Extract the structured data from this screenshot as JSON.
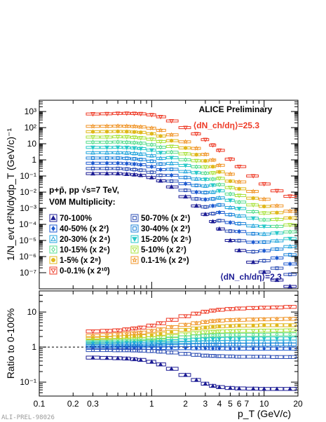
{
  "chart_data": [
    {
      "type": "scatter",
      "title": "ALICE Preliminary",
      "xlabel": "p_T (GeV/c)",
      "ylabel": "1/N_evt d²N/dydp_T (GeV/c)⁻¹",
      "xscale": "log",
      "yscale": "log",
      "xlim": [
        0.1,
        20
      ],
      "ylim": [
        1e-08,
        5000
      ],
      "x_ticks": [
        "0.1",
        "0.2",
        "0.3",
        "1",
        "2",
        "3",
        "4",
        "5",
        "6",
        "7",
        "10",
        "20"
      ],
      "y_ticks": [
        "10³",
        "10²",
        "10",
        "1",
        "10⁻¹",
        "10⁻²",
        "10⁻³",
        "10⁻⁴",
        "10⁻⁵",
        "10⁻⁶",
        "10⁻⁷"
      ],
      "annotation_top": "⟨dN_ch/dη⟩=25.3",
      "annotation_bottom": "⟨dN_ch/dη⟩=2.3",
      "legend_header": [
        "p+p̄, pp √s=7 TeV,",
        "V0M Multiplicity:"
      ],
      "legend_position": "center-left",
      "x": [
        0.3,
        0.4,
        0.5,
        0.6,
        0.7,
        0.8,
        1.0,
        1.2,
        1.5,
        2.0,
        2.5,
        3.0,
        3.5,
        4.0,
        5.0,
        6.0,
        8.0,
        10.0,
        13.0,
        17.0
      ],
      "series": [
        {
          "name": "70-100%",
          "scale_factor": 1,
          "color": "#1c1c94",
          "marker": "triangle-up",
          "values": [
            0.14,
            0.14,
            0.14,
            0.13,
            0.12,
            0.11,
            0.08,
            0.05,
            0.021,
            0.0052,
            0.0014,
            0.00042,
            0.00015,
            5.2e-05,
            1e-05,
            2.4e-06,
            4.5e-07,
            1.1e-07,
            3.5e-08,
            1.4e-08
          ]
        },
        {
          "name": "50-70% (x 2¹)",
          "scale_factor": 2,
          "color": "#2e4fb4",
          "marker": "square-open-cross",
          "values": [
            0.29,
            0.29,
            0.29,
            0.27,
            0.25,
            0.23,
            0.17,
            0.11,
            0.048,
            0.013,
            0.0038,
            0.0012,
            0.00046,
            0.00017,
            3.8e-05,
            9.7e-06,
            2e-06,
            5.5e-07,
            1.9e-07,
            7.8e-08
          ]
        },
        {
          "name": "40-50% (x 2²)",
          "scale_factor": 4,
          "color": "#1f5bd0",
          "marker": "diamond",
          "values": [
            0.62,
            0.62,
            0.62,
            0.59,
            0.55,
            0.5,
            0.38,
            0.25,
            0.11,
            0.033,
            0.01,
            0.0035,
            0.0014,
            0.00055,
            0.00013,
            3.6e-05,
            7.8e-06,
            2.3e-06,
            8.2e-07,
            3.5e-07
          ]
        },
        {
          "name": "30-40% (x 2³)",
          "scale_factor": 8,
          "color": "#1a80d8",
          "marker": "x-open-square",
          "values": [
            1.3,
            1.3,
            1.3,
            1.25,
            1.15,
            1.05,
            0.82,
            0.55,
            0.26,
            0.08,
            0.026,
            0.0094,
            0.0038,
            0.0016,
            0.0004,
            0.00011,
            2.6e-05,
            7.9e-06,
            2.9e-06,
            1.3e-06
          ]
        },
        {
          "name": "20-30% (x 2⁴)",
          "scale_factor": 16,
          "color": "#23a6dc",
          "marker": "triangle-up-open",
          "values": [
            2.8,
            2.8,
            2.8,
            2.7,
            2.5,
            2.3,
            1.8,
            1.25,
            0.6,
            0.19,
            0.065,
            0.024,
            0.01,
            0.0044,
            0.0011,
            0.00033,
            8e-05,
            2.5e-05,
            9.5e-06,
            4.2e-06
          ]
        },
        {
          "name": "15-20% (x 2⁵)",
          "scale_factor": 32,
          "color": "#2ac9c9",
          "marker": "triangle-down",
          "values": [
            5.9,
            5.9,
            6.0,
            5.8,
            5.4,
            5.0,
            4.0,
            2.8,
            1.35,
            0.45,
            0.16,
            0.062,
            0.027,
            0.012,
            0.0031,
            0.00095,
            0.00024,
            7.5e-05,
            2.9e-05,
            1.3e-05
          ]
        },
        {
          "name": "10-15% (x 2⁶)",
          "scale_factor": 64,
          "color": "#55dc8c",
          "marker": "diamond-cross",
          "values": [
            12.5,
            12.5,
            12.8,
            12.4,
            11.6,
            10.8,
            8.7,
            6.1,
            3.0,
            1.02,
            0.37,
            0.15,
            0.064,
            0.029,
            0.0076,
            0.0024,
            0.00061,
            0.00019,
            7.5e-05,
            3.4e-05
          ]
        },
        {
          "name": "5-10% (x 2⁷)",
          "scale_factor": 128,
          "color": "#a9e23c",
          "marker": "triangle-down-open",
          "values": [
            26,
            26,
            27,
            26.5,
            25,
            23,
            19,
            13.5,
            6.8,
            2.35,
            0.88,
            0.36,
            0.155,
            0.071,
            0.019,
            0.0061,
            0.0016,
            0.0005,
            0.0002,
            9.2e-05
          ]
        },
        {
          "name": "1-5% (x 2⁸)",
          "scale_factor": 256,
          "color": "#e0b81c",
          "marker": "circle",
          "values": [
            56,
            57,
            58,
            57,
            54,
            51,
            42,
            30,
            15.5,
            5.5,
            2.1,
            0.87,
            0.38,
            0.18,
            0.048,
            0.016,
            0.0042,
            0.0013,
            0.00053,
            0.00025
          ]
        },
        {
          "name": "0.1-1% (x 2⁹)",
          "scale_factor": 512,
          "color": "#f0962a",
          "marker": "star-open",
          "values": [
            120,
            122,
            125,
            123,
            118,
            111,
            93,
            68,
            36,
            13.2,
            5.2,
            2.2,
            0.98,
            0.46,
            0.13,
            0.043,
            0.011,
            0.0036,
            0.0014,
            0.00066
          ]
        },
        {
          "name": "0-0.1% (x 2¹⁰)",
          "scale_factor": 1024,
          "color": "#ee3a26",
          "marker": "triangle-down-open",
          "values": [
            700,
            720,
            760,
            770,
            750,
            720,
            620,
            470,
            260,
            100,
            41,
            18,
            8.2,
            3.9,
            1.1,
            0.38,
            0.1,
            0.032,
            0.012,
            0.0055
          ]
        }
      ]
    },
    {
      "type": "scatter",
      "xlabel": "p_T (GeV/c)",
      "ylabel": "Ratio to 0-100%",
      "xscale": "log",
      "yscale": "log",
      "xlim": [
        0.1,
        20
      ],
      "ylim": [
        0.04,
        40
      ],
      "y_ticks": [
        "10",
        "1",
        "10⁻¹"
      ],
      "reference_line": 1,
      "x": [
        0.3,
        0.4,
        0.5,
        0.6,
        0.7,
        0.8,
        1.0,
        1.2,
        1.5,
        2.0,
        2.5,
        3.0,
        3.5,
        4.0,
        5.0,
        6.0,
        8.0,
        10.0,
        13.0,
        17.0
      ],
      "series": [
        {
          "name": "0-0.1% (x 2¹⁰)",
          "values": [
            2.8,
            2.9,
            3.0,
            3.2,
            3.4,
            3.6,
            4.1,
            4.8,
            6.0,
            7.6,
            9.0,
            10.2,
            11.0,
            11.6,
            12.2,
            12.6,
            13.0,
            13.3,
            13.5,
            14.0
          ]
        },
        {
          "name": "0.1-1% (x 2⁹)",
          "values": [
            2.1,
            2.2,
            2.3,
            2.4,
            2.5,
            2.6,
            2.9,
            3.2,
            3.7,
            4.3,
            4.8,
            5.2,
            5.5,
            5.7,
            5.9,
            6.0,
            6.1,
            6.2,
            6.3,
            6.4
          ]
        },
        {
          "name": "1-5% (x 2⁸)",
          "values": [
            1.8,
            1.85,
            1.9,
            1.95,
            2.0,
            2.05,
            2.2,
            2.4,
            2.7,
            3.1,
            3.4,
            3.6,
            3.8,
            3.9,
            4.0,
            4.1,
            4.1,
            4.2,
            4.2,
            4.2
          ]
        },
        {
          "name": "5-10% (x 2⁷)",
          "values": [
            1.55,
            1.58,
            1.6,
            1.63,
            1.66,
            1.7,
            1.78,
            1.88,
            2.05,
            2.3,
            2.5,
            2.65,
            2.75,
            2.8,
            2.85,
            2.9,
            2.9,
            2.95,
            2.95,
            3.0
          ]
        },
        {
          "name": "10-15% (x 2⁶)",
          "values": [
            1.4,
            1.42,
            1.44,
            1.46,
            1.48,
            1.5,
            1.55,
            1.62,
            1.75,
            1.9,
            2.0,
            2.1,
            2.15,
            2.2,
            2.2,
            2.25,
            2.25,
            2.25,
            2.3,
            2.3
          ]
        },
        {
          "name": "15-20% (x 2⁵)",
          "values": [
            1.3,
            1.31,
            1.32,
            1.33,
            1.34,
            1.35,
            1.38,
            1.42,
            1.48,
            1.56,
            1.62,
            1.66,
            1.69,
            1.7,
            1.72,
            1.73,
            1.74,
            1.74,
            1.75,
            1.75
          ]
        },
        {
          "name": "20-30% (x 2⁴)",
          "values": [
            1.2,
            1.2,
            1.21,
            1.21,
            1.22,
            1.22,
            1.24,
            1.26,
            1.29,
            1.33,
            1.36,
            1.38,
            1.39,
            1.4,
            1.41,
            1.41,
            1.42,
            1.42,
            1.42,
            1.43
          ]
        },
        {
          "name": "30-40% (x 2³)",
          "values": [
            1.08,
            1.08,
            1.09,
            1.09,
            1.09,
            1.1,
            1.1,
            1.11,
            1.12,
            1.14,
            1.15,
            1.16,
            1.17,
            1.17,
            1.18,
            1.18,
            1.18,
            1.18,
            1.19,
            1.19
          ]
        },
        {
          "name": "40-50% (x 2²)",
          "values": [
            0.95,
            0.95,
            0.95,
            0.95,
            0.95,
            0.95,
            0.95,
            0.94,
            0.94,
            0.93,
            0.92,
            0.92,
            0.91,
            0.91,
            0.9,
            0.9,
            0.9,
            0.9,
            0.9,
            0.9
          ]
        },
        {
          "name": "50-70% (x 2¹)",
          "values": [
            0.82,
            0.82,
            0.81,
            0.81,
            0.8,
            0.79,
            0.77,
            0.74,
            0.7,
            0.64,
            0.6,
            0.57,
            0.56,
            0.55,
            0.54,
            0.53,
            0.53,
            0.53,
            0.52,
            0.52
          ]
        },
        {
          "name": "70-100%",
          "values": [
            0.5,
            0.49,
            0.48,
            0.47,
            0.45,
            0.43,
            0.38,
            0.32,
            0.24,
            0.16,
            0.115,
            0.09,
            0.078,
            0.072,
            0.068,
            0.066,
            0.065,
            0.064,
            0.064,
            0.064
          ]
        }
      ]
    }
  ],
  "footer": {
    "credit": "ALI-PREL-98026"
  }
}
